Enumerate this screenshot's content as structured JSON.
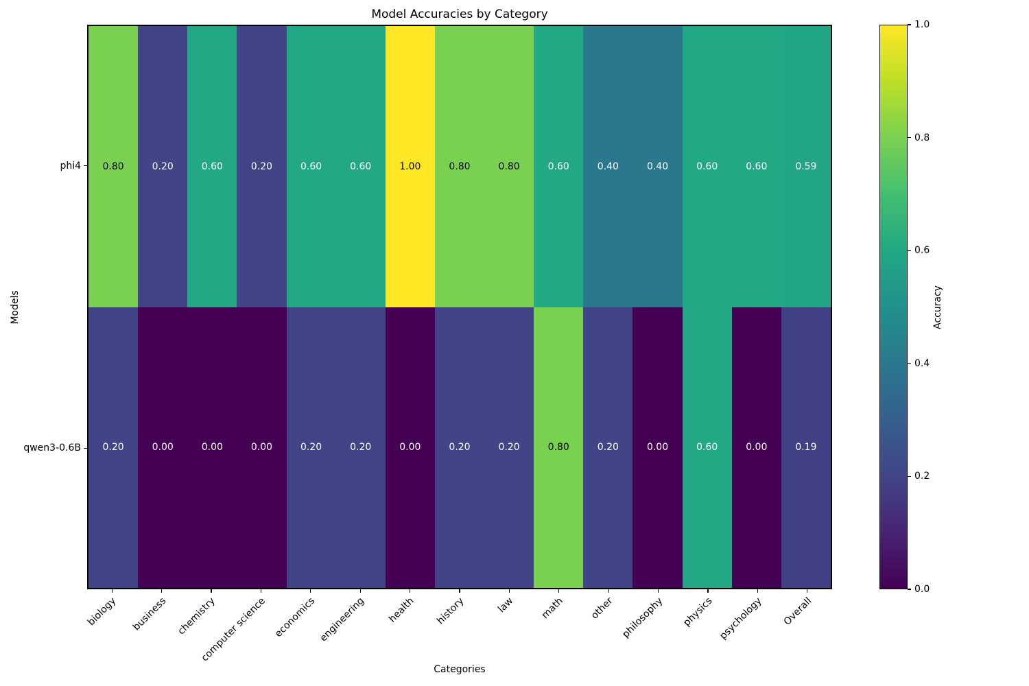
{
  "chart_data": {
    "type": "heatmap",
    "title": "Model Accuracies by Category",
    "xlabel": "Categories",
    "ylabel": "Models",
    "value_decimals": 2,
    "categories": [
      "biology",
      "business",
      "chemistry",
      "computer science",
      "economics",
      "engineering",
      "health",
      "history",
      "law",
      "math",
      "other",
      "philosophy",
      "physics",
      "psychology",
      "Overall"
    ],
    "models": [
      "phi4",
      "qwen3-0.6B"
    ],
    "series": [
      {
        "name": "phi4",
        "values": [
          0.8,
          0.2,
          0.6,
          0.2,
          0.6,
          0.6,
          1.0,
          0.8,
          0.8,
          0.6,
          0.4,
          0.4,
          0.6,
          0.6,
          0.59
        ]
      },
      {
        "name": "qwen3-0.6B",
        "values": [
          0.2,
          0.0,
          0.0,
          0.0,
          0.2,
          0.2,
          0.0,
          0.2,
          0.2,
          0.8,
          0.2,
          0.0,
          0.6,
          0.0,
          0.19
        ]
      }
    ],
    "vmin": 0.0,
    "vmax": 1.0,
    "colormap": "viridis",
    "grid": false,
    "colorbar": {
      "label": "Accuracy",
      "ticks": [
        "0.0",
        "0.2",
        "0.4",
        "0.6",
        "0.8",
        "1.0"
      ]
    },
    "colors": {
      "viridis_min": "#440154",
      "viridis_mid": "#21918c",
      "viridis_max": "#fde725",
      "annotation_light": "#ffffff",
      "annotation_dark": "#000000"
    }
  }
}
